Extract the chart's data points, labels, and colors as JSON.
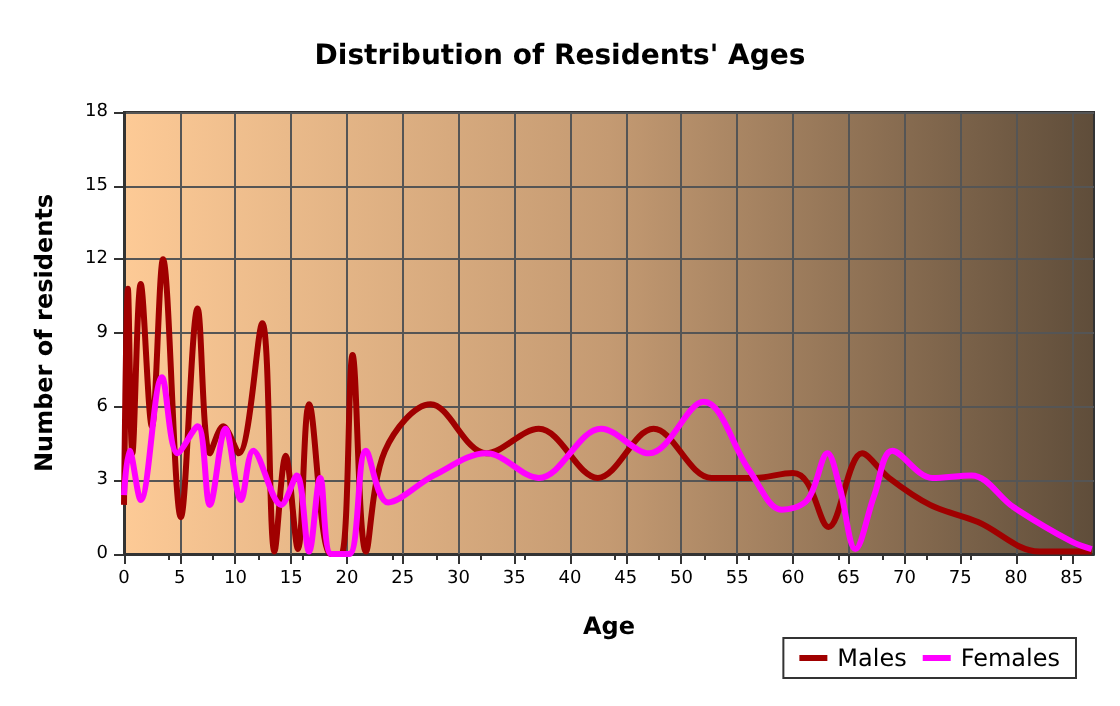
{
  "chart_data": {
    "type": "line",
    "title": "Distribution of Residents' Ages",
    "xlabel": "Age",
    "ylabel": "Number of residents",
    "xlim": [
      0,
      87
    ],
    "xticks": [
      0,
      5,
      10,
      15,
      20,
      25,
      30,
      35,
      40,
      45,
      50,
      55,
      60,
      65,
      70,
      75,
      80,
      85
    ],
    "ylim": [
      0,
      18
    ],
    "yticks": [
      0,
      3,
      6,
      9,
      12,
      15,
      18
    ],
    "grid": true,
    "legend": "bottom right",
    "marker": "none",
    "line_style": "solid",
    "series": [
      {
        "name": "Males",
        "color": "#a00000",
        "x": [
          0,
          0.35,
          0.75,
          1.5,
          2.5,
          3.5,
          5.1,
          6.6,
          7.7,
          8.9,
          10.3,
          12.4,
          13.5,
          14.5,
          15.6,
          16.6,
          18.5,
          19.5,
          20.5,
          21.7,
          23.4,
          27.5,
          32.5,
          37.2,
          42.5,
          47.5,
          52.7,
          56.6,
          60,
          61.3,
          63.2,
          66.2,
          68.6,
          72.3,
          76.6,
          82.1,
          86.8
        ],
        "values": [
          2,
          10.8,
          4.1,
          11,
          5.2,
          12,
          1.5,
          10,
          4.1,
          5.2,
          4.1,
          9.4,
          0.1,
          4,
          0.2,
          6.1,
          0,
          0,
          8.1,
          0.1,
          4.2,
          6.1,
          4.1,
          5.1,
          3.1,
          5.1,
          3.1,
          3.1,
          3.3,
          2.9,
          1.1,
          4.1,
          3.1,
          2,
          1.3,
          0.1,
          0.1
        ]
      },
      {
        "name": "Females",
        "color": "#ff00ff",
        "x": [
          0,
          0.5,
          1.5,
          3.4,
          4.8,
          6.6,
          7.7,
          9.1,
          10.5,
          11.6,
          14.1,
          15.5,
          16.6,
          17.6,
          18.6,
          20.2,
          21.7,
          23.7,
          27.8,
          32.5,
          37.2,
          42.8,
          47.1,
          52,
          56.1,
          59,
          61.3,
          63.1,
          64.2,
          65.6,
          67.3,
          68.9,
          72.5,
          76,
          79.8,
          85,
          86.8
        ],
        "values": [
          2.4,
          4.2,
          2.2,
          7.2,
          4.1,
          5.2,
          2,
          5.1,
          2.2,
          4.2,
          2,
          3.2,
          0.1,
          3.1,
          0,
          0,
          4.2,
          2.1,
          3.2,
          4.1,
          3.1,
          5.1,
          4.1,
          6.2,
          3.4,
          1.8,
          2.2,
          4.1,
          2.7,
          0.2,
          2.4,
          4.2,
          3.1,
          3.2,
          1.9,
          0.5,
          0.2
        ]
      }
    ]
  }
}
